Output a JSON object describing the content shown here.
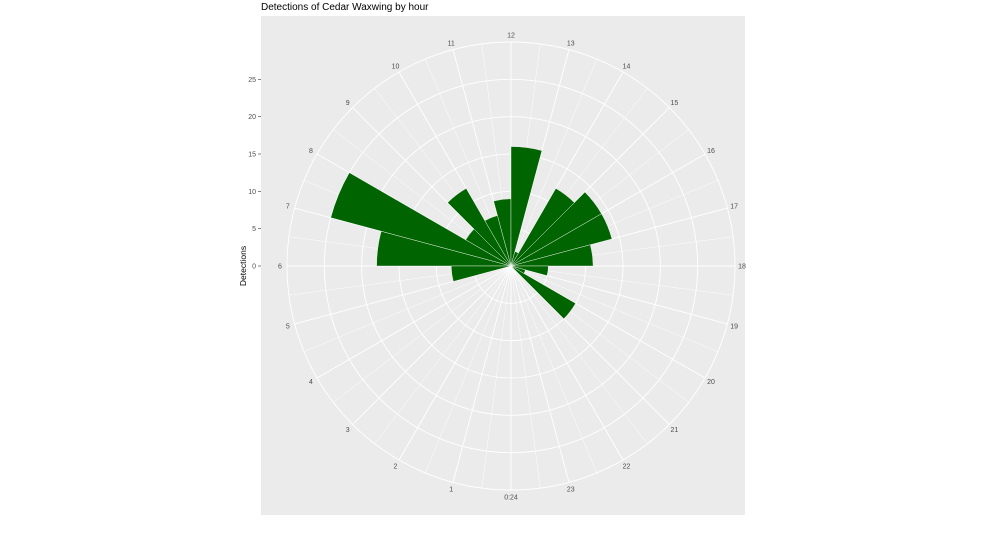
{
  "chart_data": {
    "type": "bar",
    "coord": "polar",
    "title": "Detections of Cedar Waxwing by hour",
    "xlabel": "",
    "ylabel": "Detections",
    "categories": [
      "0:24",
      "1",
      "2",
      "3",
      "4",
      "5",
      "6",
      "7",
      "8",
      "9",
      "10",
      "11",
      "12",
      "13",
      "14",
      "15",
      "16",
      "17",
      "18",
      "19",
      "20",
      "21",
      "22",
      "23"
    ],
    "hours": [
      0,
      1,
      2,
      3,
      4,
      5,
      6,
      7,
      8,
      9,
      10,
      11,
      12,
      13,
      14,
      15,
      16,
      17,
      18,
      19,
      20,
      21,
      22,
      23
    ],
    "values": [
      0,
      0,
      0,
      0,
      0,
      0,
      0,
      0,
      0,
      0,
      0,
      0,
      0,
      0,
      0,
      0,
      0,
      0,
      0,
      0,
      0,
      0,
      0,
      0
    ],
    "bars": [
      {
        "hour": 6.5,
        "value": 18
      },
      {
        "hour": 7.5,
        "value": 25
      },
      {
        "hour": 8.5,
        "value": 7
      },
      {
        "hour": 9.5,
        "value": 12
      },
      {
        "hour": 10.5,
        "value": 7
      },
      {
        "hour": 11.5,
        "value": 9
      },
      {
        "hour": 12.5,
        "value": 16
      },
      {
        "hour": 13.5,
        "value": 2
      },
      {
        "hour": 14.5,
        "value": 12
      },
      {
        "hour": 15.5,
        "value": 14
      },
      {
        "hour": 16.5,
        "value": 14
      },
      {
        "hour": 17.5,
        "value": 11
      },
      {
        "hour": 18.5,
        "value": 5
      },
      {
        "hour": 19.5,
        "value": 2
      },
      {
        "hour": 20.5,
        "value": 10
      },
      {
        "hour": 5.5,
        "value": 8
      }
    ],
    "y_ticks": [
      0,
      5,
      10,
      15,
      20,
      25
    ],
    "ylim": [
      0,
      30
    ],
    "grid": true,
    "bar_color": "#006400",
    "panel_color": "#ebebeb",
    "grid_color": "#ffffff"
  }
}
